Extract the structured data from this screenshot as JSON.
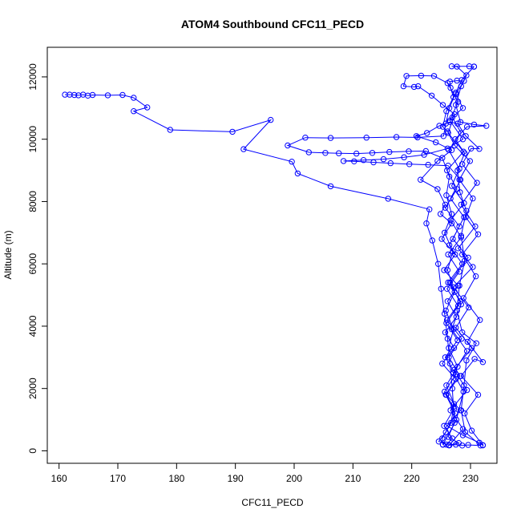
{
  "chart_data": {
    "type": "scatter",
    "title": "ATOM4 Southbound CFC11_PECD",
    "xlabel": "CFC11_PECD",
    "ylabel": "Altitude (m)",
    "xlim": [
      158,
      234.5
    ],
    "ylim": [
      -400,
      12950
    ],
    "x_ticks": [
      160,
      170,
      180,
      190,
      200,
      210,
      220,
      230
    ],
    "y_ticks": [
      0,
      2000,
      4000,
      6000,
      8000,
      10000,
      12000
    ],
    "grid": false,
    "legend": "none",
    "point_style": "open-circle-connected",
    "series_color": "#0000ff",
    "series": [
      {
        "points": [
          [
            161,
            11430
          ],
          [
            161.8,
            11430
          ],
          [
            162.6,
            11420
          ],
          [
            163.3,
            11410
          ],
          [
            164.1,
            11430
          ],
          [
            164.9,
            11400
          ],
          [
            165.7,
            11420
          ],
          [
            168.3,
            11410
          ],
          [
            170.8,
            11420
          ],
          [
            172.7,
            11330
          ],
          [
            175,
            11020
          ],
          [
            172.7,
            10900
          ],
          [
            178.9,
            10300
          ],
          [
            189.5,
            10240
          ],
          [
            196,
            10620
          ],
          [
            191.4,
            9680
          ],
          [
            199.6,
            9280
          ],
          [
            200.6,
            8900
          ],
          [
            206.2,
            8490
          ],
          [
            216,
            8090
          ],
          [
            223,
            7750
          ],
          [
            222.5,
            7300
          ],
          [
            223.5,
            6750
          ],
          [
            224.5,
            6000
          ],
          [
            225,
            5200
          ],
          [
            225.6,
            4400
          ],
          [
            226.1,
            3600
          ],
          [
            226.5,
            2800
          ],
          [
            226.9,
            2000
          ],
          [
            227.1,
            1400
          ],
          [
            227.3,
            900
          ],
          [
            226.2,
            450
          ],
          [
            228,
            250
          ],
          [
            226.3,
            180
          ],
          [
            227.5,
            200
          ],
          [
            228.6,
            170
          ],
          [
            229.6,
            190
          ],
          [
            231.7,
            170
          ],
          [
            229.1,
            600
          ],
          [
            228.4,
            1300
          ],
          [
            228.9,
            2100
          ],
          [
            229.3,
            2900
          ],
          [
            231,
            3450
          ],
          [
            228.6,
            3800
          ],
          [
            227.7,
            4500
          ],
          [
            228.1,
            5300
          ],
          [
            229,
            6100
          ],
          [
            228.4,
            6900
          ],
          [
            229.3,
            7700
          ],
          [
            228.2,
            8300
          ],
          [
            227.8,
            9000
          ],
          [
            229,
            9550
          ],
          [
            227.4,
            10000
          ],
          [
            229.4,
            10400
          ],
          [
            232.7,
            10430
          ],
          [
            230.6,
            10470
          ],
          [
            228.3,
            10550
          ],
          [
            227.5,
            11100
          ],
          [
            228.4,
            11700
          ],
          [
            229.3,
            12050
          ],
          [
            227.7,
            12330
          ],
          [
            226.8,
            12340
          ],
          [
            229.8,
            12340
          ],
          [
            230.6,
            12330
          ]
        ]
      },
      {
        "points": [
          [
            230.6,
            12330
          ],
          [
            228.5,
            11900
          ],
          [
            227.5,
            11500
          ],
          [
            226.4,
            11000
          ],
          [
            225.8,
            10500
          ],
          [
            225.4,
            10100
          ],
          [
            221,
            10060
          ],
          [
            217.4,
            10070
          ],
          [
            212.3,
            10050
          ],
          [
            206.2,
            10040
          ],
          [
            201.9,
            10050
          ],
          [
            198.9,
            9800
          ],
          [
            202.5,
            9580
          ],
          [
            205.3,
            9560
          ],
          [
            207.6,
            9550
          ],
          [
            210.6,
            9540
          ],
          [
            213.3,
            9560
          ],
          [
            216.2,
            9590
          ],
          [
            219.5,
            9610
          ],
          [
            222.4,
            9620
          ],
          [
            225.2,
            9400
          ],
          [
            226.4,
            8800
          ],
          [
            225.9,
            8200
          ],
          [
            226.8,
            7600
          ],
          [
            225.6,
            7000
          ],
          [
            227,
            6400
          ],
          [
            226.1,
            5800
          ],
          [
            227.3,
            5100
          ],
          [
            225.8,
            4500
          ],
          [
            227.1,
            3900
          ],
          [
            226.3,
            3300
          ],
          [
            227.8,
            2700
          ],
          [
            225.9,
            2100
          ],
          [
            227.2,
            1500
          ],
          [
            226.7,
            900
          ],
          [
            225.2,
            400
          ],
          [
            225.3,
            200
          ]
        ]
      },
      {
        "points": [
          [
            225.3,
            200
          ],
          [
            227.6,
            1000
          ],
          [
            228.8,
            1900
          ],
          [
            227.1,
            2500
          ],
          [
            229.4,
            3200
          ],
          [
            226.8,
            3900
          ],
          [
            228.4,
            4700
          ],
          [
            226.5,
            5400
          ],
          [
            229.6,
            6200
          ],
          [
            227,
            6800
          ],
          [
            228.9,
            7500
          ],
          [
            226.6,
            8100
          ],
          [
            228.3,
            8700
          ],
          [
            226.2,
            9150
          ],
          [
            222.8,
            9180
          ],
          [
            219.6,
            9200
          ],
          [
            216.4,
            9230
          ],
          [
            213.5,
            9260
          ],
          [
            210.2,
            9290
          ],
          [
            208.4,
            9300
          ],
          [
            211.8,
            9330
          ],
          [
            215.2,
            9360
          ],
          [
            218.7,
            9420
          ],
          [
            222.1,
            9500
          ],
          [
            226.1,
            9700
          ],
          [
            228.7,
            10000
          ],
          [
            226.5,
            10600
          ],
          [
            227.9,
            11200
          ],
          [
            226.1,
            11800
          ],
          [
            223.8,
            12030
          ],
          [
            221.6,
            12040
          ],
          [
            219.1,
            12030
          ],
          [
            218.6,
            11700
          ],
          [
            220.4,
            11680
          ],
          [
            221.1,
            11700
          ],
          [
            223.4,
            11400
          ],
          [
            225.3,
            11100
          ],
          [
            227.3,
            10800
          ],
          [
            226.2,
            10200
          ],
          [
            228.8,
            9600
          ],
          [
            226,
            9000
          ],
          [
            227.7,
            8400
          ],
          [
            225.7,
            7800
          ],
          [
            228.1,
            7200
          ],
          [
            226.4,
            6600
          ],
          [
            228.6,
            6000
          ],
          [
            226.2,
            5400
          ],
          [
            228.3,
            4800
          ],
          [
            226,
            4200
          ],
          [
            228.5,
            3600
          ],
          [
            226.3,
            3000
          ],
          [
            228.2,
            2400
          ],
          [
            225.8,
            1800
          ],
          [
            227.4,
            1200
          ],
          [
            225.8,
            600
          ],
          [
            224.6,
            300
          ],
          [
            226.4,
            180
          ]
        ]
      },
      {
        "points": [
          [
            226.4,
            180
          ],
          [
            228.7,
            700
          ],
          [
            226.6,
            1300
          ],
          [
            229.4,
            1950
          ],
          [
            227.2,
            2600
          ],
          [
            230.2,
            3300
          ],
          [
            227.5,
            3950
          ],
          [
            229.7,
            4600
          ],
          [
            227.1,
            5250
          ],
          [
            230.4,
            5900
          ],
          [
            227.9,
            6500
          ],
          [
            230.8,
            7200
          ],
          [
            228.4,
            7900
          ],
          [
            231.1,
            8600
          ],
          [
            228.6,
            9200
          ],
          [
            230.1,
            9700
          ],
          [
            231.5,
            9690
          ],
          [
            229.2,
            10100
          ],
          [
            227.8,
            10500
          ],
          [
            226.5,
            10550
          ],
          [
            224.7,
            10430
          ],
          [
            222.6,
            10200
          ],
          [
            220.8,
            10100
          ],
          [
            224.1,
            9900
          ],
          [
            226.8,
            9650
          ],
          [
            224.4,
            9300
          ],
          [
            221.5,
            8700
          ],
          [
            224.4,
            8400
          ],
          [
            225.7,
            7900
          ],
          [
            224.9,
            7600
          ],
          [
            226.8,
            7300
          ],
          [
            225.1,
            6800
          ],
          [
            227.4,
            6300
          ],
          [
            225.5,
            5800
          ],
          [
            227.9,
            5300
          ],
          [
            226.1,
            4800
          ],
          [
            227.6,
            4300
          ],
          [
            225.7,
            3800
          ],
          [
            227.2,
            3300
          ],
          [
            225.2,
            2800
          ],
          [
            227.5,
            2300
          ],
          [
            225.9,
            1800
          ],
          [
            228.3,
            1300
          ],
          [
            226,
            800
          ],
          [
            228.7,
            500
          ],
          [
            231.5,
            260
          ],
          [
            232.1,
            180
          ]
        ]
      },
      {
        "points": [
          [
            232.1,
            180
          ],
          [
            230.2,
            650
          ],
          [
            229,
            1200
          ],
          [
            231.3,
            1800
          ],
          [
            228.4,
            2400
          ],
          [
            230.7,
            2950
          ],
          [
            232.1,
            2850
          ],
          [
            229.5,
            3500
          ],
          [
            231.6,
            4200
          ],
          [
            228.8,
            4900
          ],
          [
            230.9,
            5600
          ],
          [
            228.6,
            6300
          ],
          [
            231.3,
            6950
          ],
          [
            229.2,
            7500
          ],
          [
            230.4,
            8100
          ],
          [
            228.1,
            8700
          ],
          [
            229.9,
            9300
          ],
          [
            227.3,
            9800
          ],
          [
            226.1,
            10250
          ],
          [
            225.3,
            10400
          ],
          [
            225.9,
            10900
          ],
          [
            227.1,
            11350
          ],
          [
            226.6,
            11650
          ],
          [
            226.5,
            11850
          ],
          [
            227.7,
            11880
          ],
          [
            228.9,
            11870
          ],
          [
            227.5,
            11450
          ],
          [
            228.7,
            11000
          ],
          [
            226.9,
            10700
          ],
          [
            228.4,
            10200
          ],
          [
            226.3,
            9650
          ],
          [
            228.1,
            9050
          ],
          [
            226.8,
            8500
          ],
          [
            228.9,
            7950
          ],
          [
            226.6,
            7400
          ],
          [
            228.4,
            6850
          ],
          [
            226.2,
            6300
          ],
          [
            228.1,
            5750
          ],
          [
            226,
            5200
          ],
          [
            227.9,
            4650
          ],
          [
            225.9,
            4100
          ],
          [
            227.8,
            3550
          ],
          [
            225.7,
            3000
          ],
          [
            227.5,
            2450
          ],
          [
            225.6,
            1900
          ],
          [
            227.2,
            1350
          ],
          [
            225.5,
            800
          ],
          [
            226.9,
            400
          ],
          [
            225.9,
            200
          ]
        ]
      }
    ]
  }
}
